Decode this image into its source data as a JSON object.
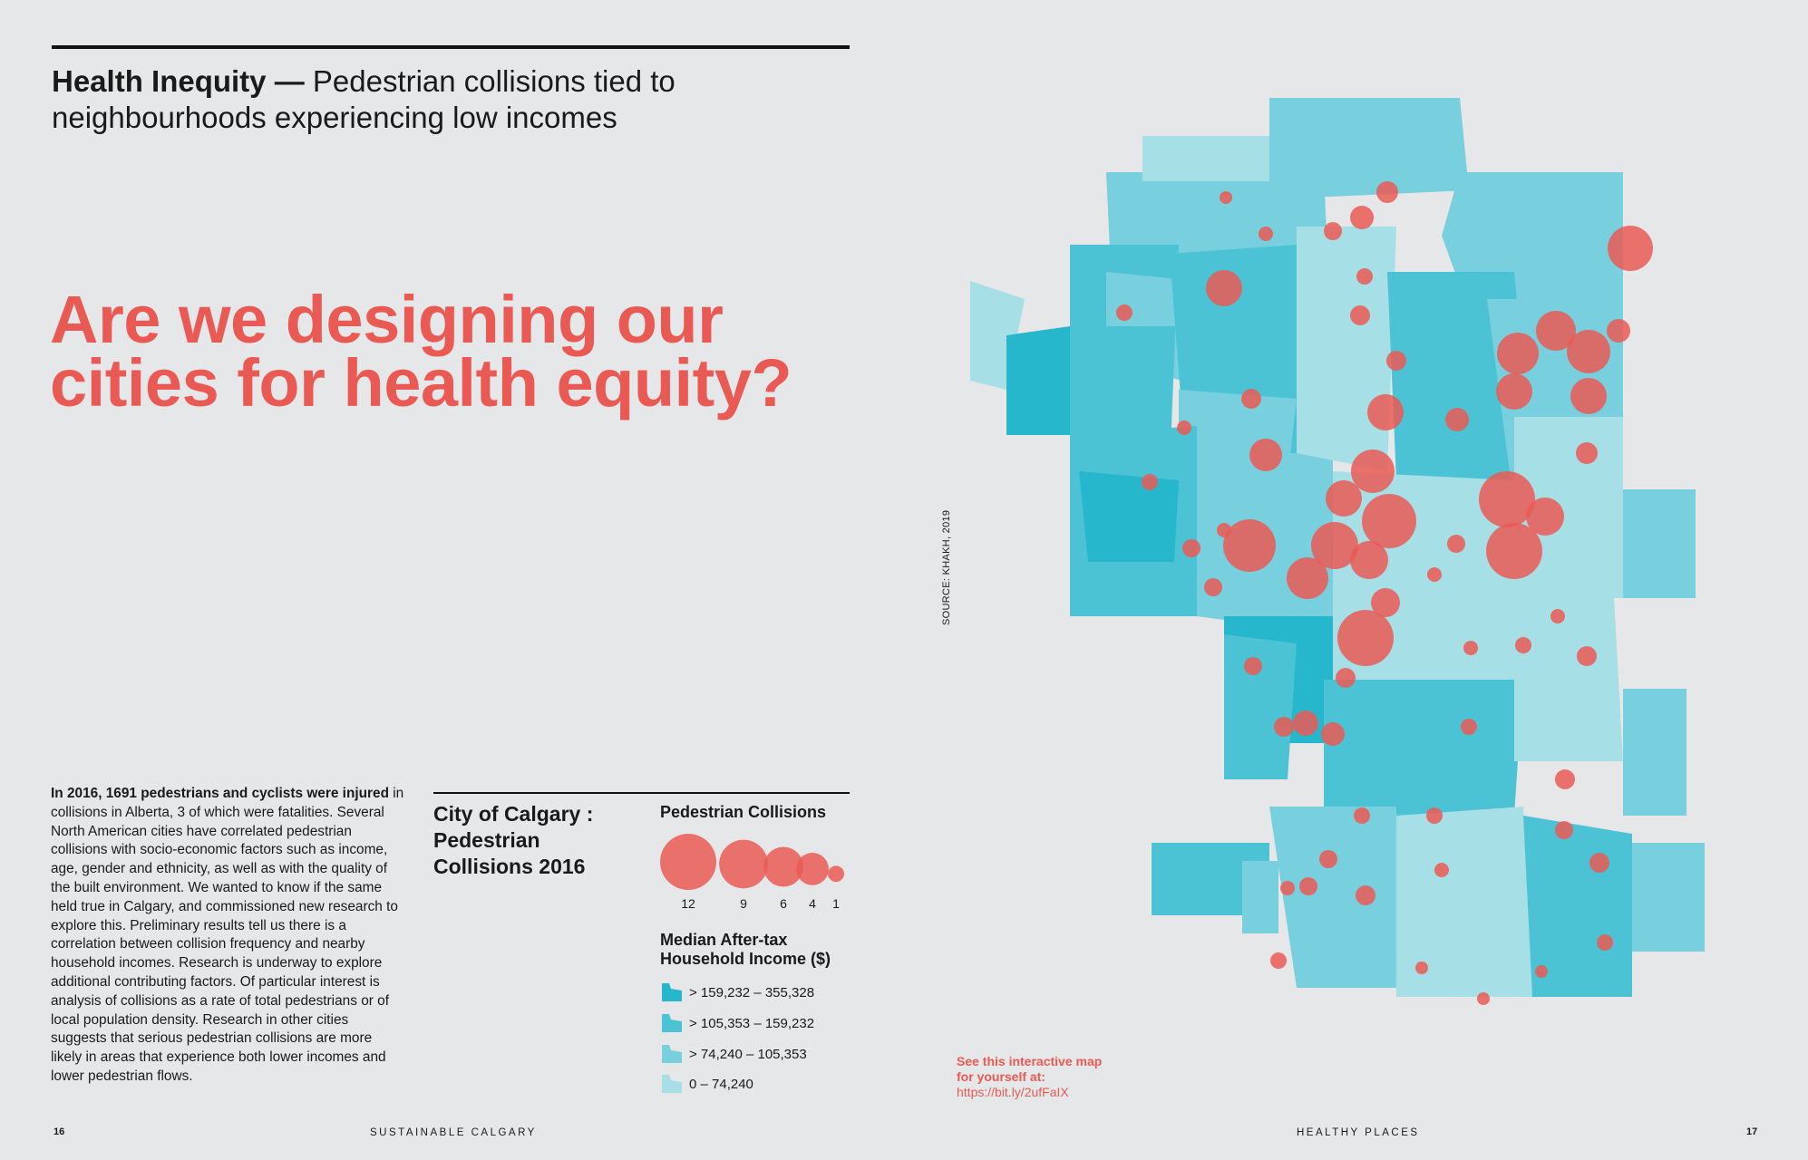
{
  "header": {
    "title_bold": "Health Inequity —",
    "title_rest": " Pedestrian collisions tied to neighbourhoods experiencing low incomes"
  },
  "question": {
    "line1": "Are we designing our",
    "line2": "cities for health equity?"
  },
  "body": {
    "lead": "In 2016, 1691 pedestrians and cyclists were injured",
    "text": " in collisions in Alberta, 3 of which were fatalities. Several North American cities have correlated pedestrian collisions with socio-economic factors such as income, age, gender and ethnicity, as well as with the quality of the built environment. We wanted to know if the same held true in Calgary, and commissioned new research to explore this. Preliminary results tell us there is a correlation between collision frequency and nearby household incomes. Research is underway to explore additional contributing factors. Of particular interest is analysis of collisions as a rate of total pedestrians or of local population density. Research in other cities suggests that serious pedestrian collisions are more likely in areas that experience both lower incomes and lower pedestrian flows."
  },
  "legend": {
    "title": "City of Calgary : Pedestrian Collisions 2016",
    "collisions_heading": "Pedestrian Collisions",
    "bubble_values": [
      12,
      9,
      6,
      4,
      1
    ],
    "income_heading": "Median After-tax Household Income ($)",
    "income_classes": [
      {
        "label": "> 159,232 – 355,328",
        "color": "#27b7cc"
      },
      {
        "label": "> 105,353 – 159,232",
        "color": "#4cc3d4"
      },
      {
        "label": "> 74,240 – 105,353",
        "color": "#78cfdd"
      },
      {
        "label": "0 – 74,240",
        "color": "#a7dfe6"
      }
    ]
  },
  "map": {
    "source": "SOURCE: KHAKH, 2019",
    "collision_color": "#ea5a55"
  },
  "cta": {
    "line1": "See this interactive map",
    "line2": "for yourself at:",
    "url": "https://bit.ly/2ufFaIX"
  },
  "footer": {
    "left_page": "16",
    "left_label": "SUSTAINABLE CALGARY",
    "right_label": "HEALTHY PLACES",
    "right_page": "17"
  }
}
